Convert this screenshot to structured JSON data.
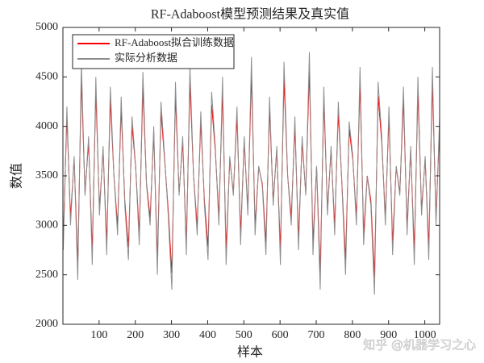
{
  "chart_data": {
    "type": "line",
    "title": "RF-Adaboost模型预测结果及真实值",
    "x_label": "样本",
    "y_label": "数值",
    "watermark": "知乎 @机器学习之心",
    "legend_position": "upper-left",
    "xlim": [
      0,
      1041
    ],
    "ylim": [
      2000,
      5000
    ],
    "xticks": [
      100,
      200,
      300,
      400,
      500,
      600,
      700,
      800,
      900,
      1000
    ],
    "yticks": [
      2000,
      2500,
      3000,
      3500,
      4000,
      4500,
      5000
    ],
    "x": [
      1,
      11,
      21,
      31,
      41,
      51,
      61,
      71,
      81,
      91,
      101,
      111,
      121,
      131,
      141,
      151,
      161,
      171,
      181,
      191,
      201,
      211,
      221,
      231,
      241,
      251,
      261,
      271,
      281,
      291,
      301,
      311,
      321,
      331,
      341,
      351,
      361,
      371,
      381,
      391,
      401,
      411,
      421,
      431,
      441,
      451,
      461,
      471,
      481,
      491,
      501,
      511,
      521,
      531,
      541,
      551,
      561,
      571,
      581,
      591,
      601,
      611,
      621,
      631,
      641,
      651,
      661,
      671,
      681,
      691,
      701,
      711,
      721,
      731,
      741,
      751,
      761,
      771,
      781,
      791,
      801,
      811,
      821,
      831,
      841,
      851,
      861,
      871,
      881,
      891,
      901,
      911,
      921,
      931,
      941,
      951,
      961,
      971,
      981,
      991,
      1001,
      1011,
      1021,
      1031,
      1041
    ],
    "series": [
      {
        "name": "RF-Adaboost拟合训练数据",
        "color": "#ff0000",
        "values": [
          2860,
          4100,
          3080,
          3670,
          2610,
          4480,
          3330,
          3840,
          2740,
          4350,
          3160,
          3760,
          2820,
          4270,
          3500,
          2990,
          4180,
          3250,
          2780,
          4010,
          3590,
          2910,
          4390,
          3420,
          3080,
          3930,
          2650,
          4140,
          3670,
          3160,
          2520,
          4310,
          3330,
          3840,
          2820,
          4440,
          3500,
          2990,
          4050,
          3250,
          2780,
          4220,
          3760,
          3080,
          4350,
          2740,
          3670,
          3330,
          4100,
          2910,
          3840,
          3160,
          4520,
          2990,
          3590,
          3420,
          2820,
          4180,
          3250,
          3760,
          2740,
          4480,
          3500,
          3080,
          4010,
          2860,
          3840,
          3330,
          4560,
          2820,
          3590,
          2520,
          4270,
          3160,
          3760,
          2990,
          4140,
          3420,
          2650,
          3970,
          3670,
          3080,
          4440,
          2910,
          3500,
          3250,
          2480,
          4310,
          3840,
          3080,
          4100,
          2820,
          3590,
          3330,
          4270,
          2990,
          3760,
          2740,
          4350,
          3160,
          3670,
          2780,
          4440,
          3080,
          4010
        ]
      },
      {
        "name": "实际分析数据",
        "color": "#8c8c8c",
        "values": [
          2750,
          4200,
          3000,
          3700,
          2450,
          4650,
          3300,
          3900,
          2600,
          4500,
          3100,
          3800,
          2700,
          4400,
          3500,
          2900,
          4300,
          3200,
          2650,
          4100,
          3600,
          2800,
          4550,
          3400,
          3000,
          4000,
          2500,
          4250,
          3700,
          3100,
          2350,
          4450,
          3300,
          3900,
          2700,
          4600,
          3500,
          2900,
          4150,
          3200,
          2650,
          4350,
          3800,
          3000,
          4500,
          2600,
          3700,
          3300,
          4200,
          2800,
          3900,
          3100,
          4700,
          2900,
          3600,
          3400,
          2700,
          4300,
          3200,
          3800,
          2600,
          4650,
          3500,
          3000,
          4100,
          2750,
          3900,
          3300,
          4750,
          2700,
          3600,
          2350,
          4400,
          3100,
          3800,
          2900,
          4250,
          3400,
          2500,
          4050,
          3700,
          3000,
          4600,
          2800,
          3500,
          3200,
          2300,
          4450,
          3900,
          3000,
          4200,
          2700,
          3600,
          3300,
          4400,
          2900,
          3800,
          2600,
          4500,
          3100,
          3700,
          2650,
          4600,
          3000,
          4100
        ]
      }
    ]
  }
}
